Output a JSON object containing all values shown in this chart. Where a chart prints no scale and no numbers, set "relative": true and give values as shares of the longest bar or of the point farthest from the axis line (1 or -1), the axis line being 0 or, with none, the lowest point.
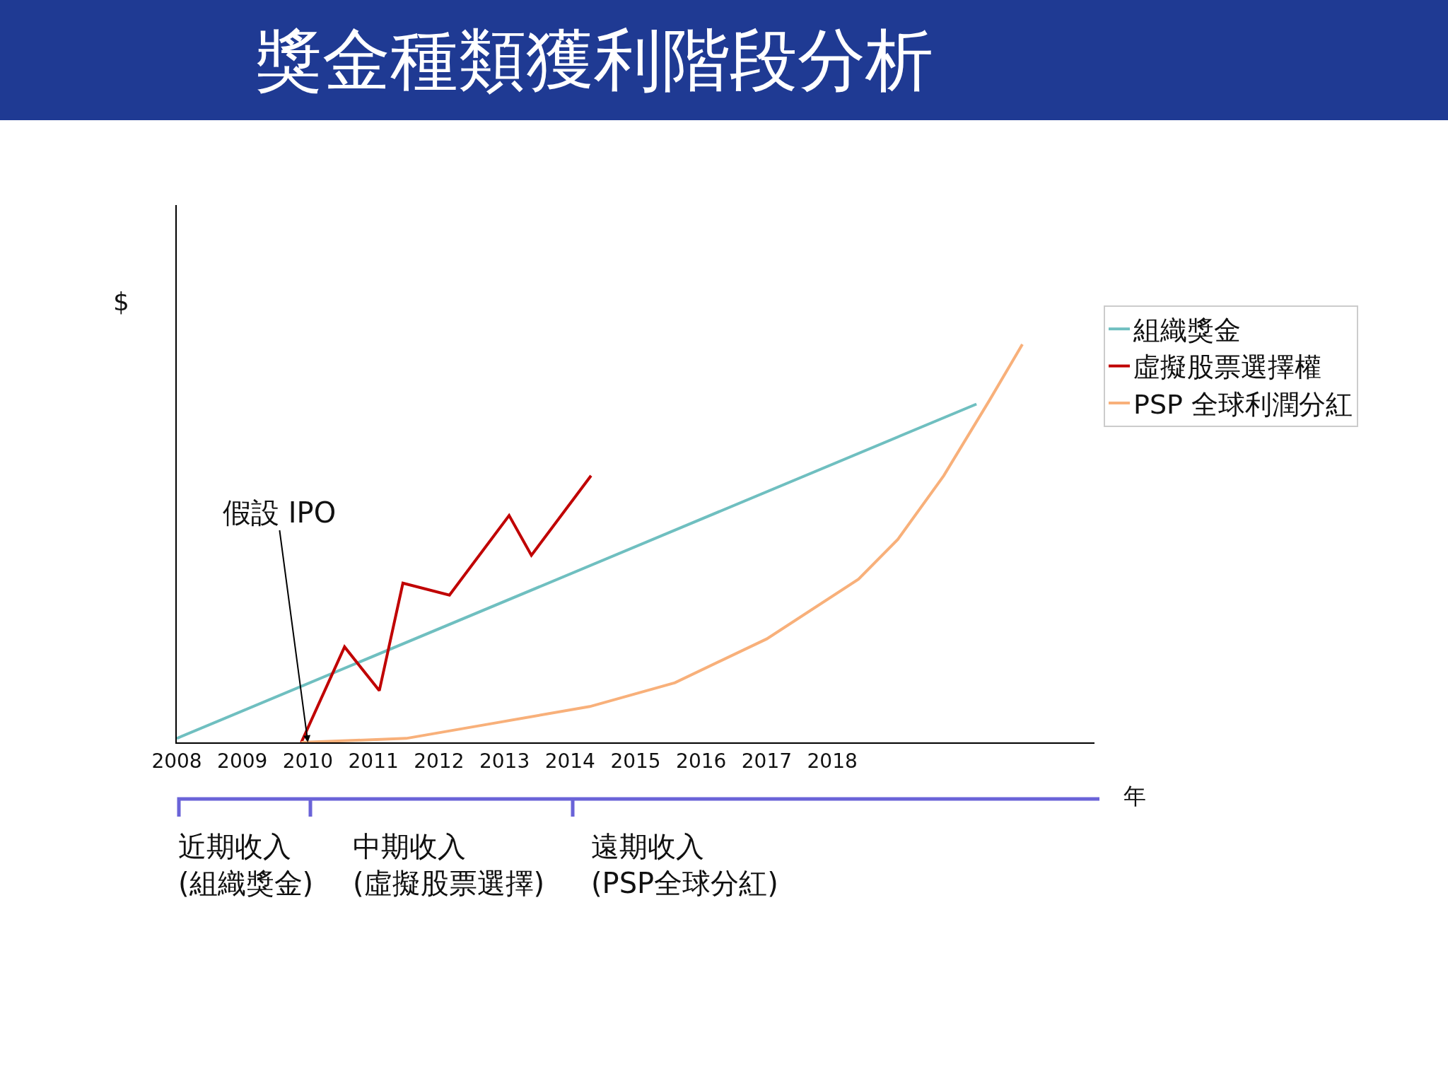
{
  "chart_data": {
    "type": "line",
    "title": "獎金種類獲利階段分析",
    "xlabel": "年",
    "ylabel": "$",
    "relative": true,
    "xlim": [
      2008,
      2022
    ],
    "xticks": [
      2008,
      2009,
      2010,
      2011,
      2012,
      2013,
      2014,
      2015,
      2016,
      2017,
      2018
    ],
    "legend": "right",
    "grid": false,
    "marker": "none",
    "line_style": "solid",
    "series": [
      {
        "name": "組織獎金",
        "color": "#6fbfc0",
        "x": [
          2008,
          2020.2
        ],
        "values": [
          0.01,
          0.85
        ]
      },
      {
        "name": "虛擬股票選擇權",
        "color": "#c00000",
        "x": [
          2009.9,
          2010.56,
          2011.09,
          2011.45,
          2012.16,
          2013.07,
          2013.41,
          2014.32
        ],
        "values": [
          0,
          0.24,
          0.13,
          0.4,
          0.37,
          0.57,
          0.47,
          0.67
        ]
      },
      {
        "name": "PSP 全球利潤分紅",
        "color": "#f8b07a",
        "x": [
          2009.9,
          2011.5,
          2012.9,
          2014.3,
          2015.6,
          2017.0,
          2018.4,
          2019.0,
          2019.7,
          2020.4,
          2020.9
        ],
        "values": [
          0,
          0.01,
          0.05,
          0.09,
          0.15,
          0.26,
          0.41,
          0.51,
          0.67,
          0.86,
          1
        ]
      }
    ],
    "annotations": [
      {
        "text": "假設 IPO",
        "x": 2010,
        "y": 0
      },
      "近期收入\n(組織獎金)",
      "中期收入\n(虛擬股票選擇)",
      "遠期收入\n(PSP全球分紅)"
    ]
  }
}
